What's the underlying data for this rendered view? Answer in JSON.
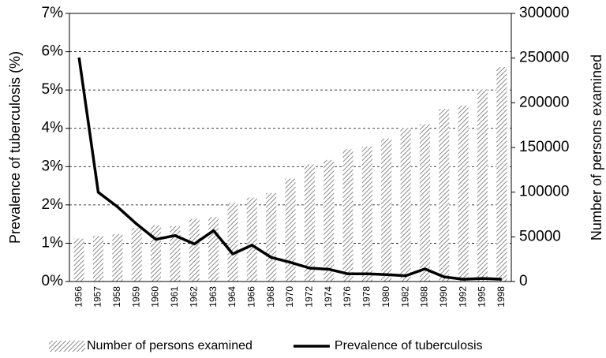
{
  "chart_data": {
    "type": "bar-line",
    "categories": [
      "1956",
      "1957",
      "1958",
      "1959",
      "1960",
      "1961",
      "1962",
      "1963",
      "1964",
      "1966",
      "1968",
      "1970",
      "1972",
      "1974",
      "1976",
      "1978",
      "1980",
      "1982",
      "1988",
      "1990",
      "1992",
      "1995",
      "1998"
    ],
    "series": [
      {
        "name": "Number of persons examined",
        "type": "bar",
        "axis": "y2",
        "color": "#8c8c8c",
        "hatch": true,
        "values": [
          48000,
          51000,
          53000,
          60000,
          63000,
          62000,
          70000,
          72000,
          88000,
          94000,
          99000,
          115000,
          131000,
          136000,
          148000,
          151000,
          160000,
          172000,
          176000,
          193000,
          197000,
          215000,
          240000
        ]
      },
      {
        "name": "Prevalence of tuberculosis",
        "type": "line",
        "color": "#000000",
        "values": [
          5.85,
          2.33,
          1.95,
          1.5,
          1.1,
          1.2,
          0.98,
          1.33,
          0.72,
          0.95,
          0.63,
          0.5,
          0.35,
          0.32,
          0.2,
          0.2,
          0.18,
          0.15,
          0.33,
          0.12,
          0.06,
          0.08,
          0.06
        ]
      }
    ],
    "ylabel": "Prevalence of tuberculosis (%)",
    "y2label": "Number of persons examined",
    "ylim": [
      0,
      7
    ],
    "yticks": [
      {
        "value": 0,
        "label": "0%"
      },
      {
        "value": 1,
        "label": "1%"
      },
      {
        "value": 2,
        "label": "2%"
      },
      {
        "value": 3,
        "label": "3%"
      },
      {
        "value": 4,
        "label": "4%"
      },
      {
        "value": 5,
        "label": "5%"
      },
      {
        "value": 6,
        "label": "6%"
      },
      {
        "value": 7,
        "label": "7%"
      }
    ],
    "y2lim": [
      0,
      300000
    ],
    "y2ticks": [
      0,
      50000,
      100000,
      150000,
      200000,
      250000,
      300000
    ],
    "grid": true,
    "legend": "bottom"
  }
}
